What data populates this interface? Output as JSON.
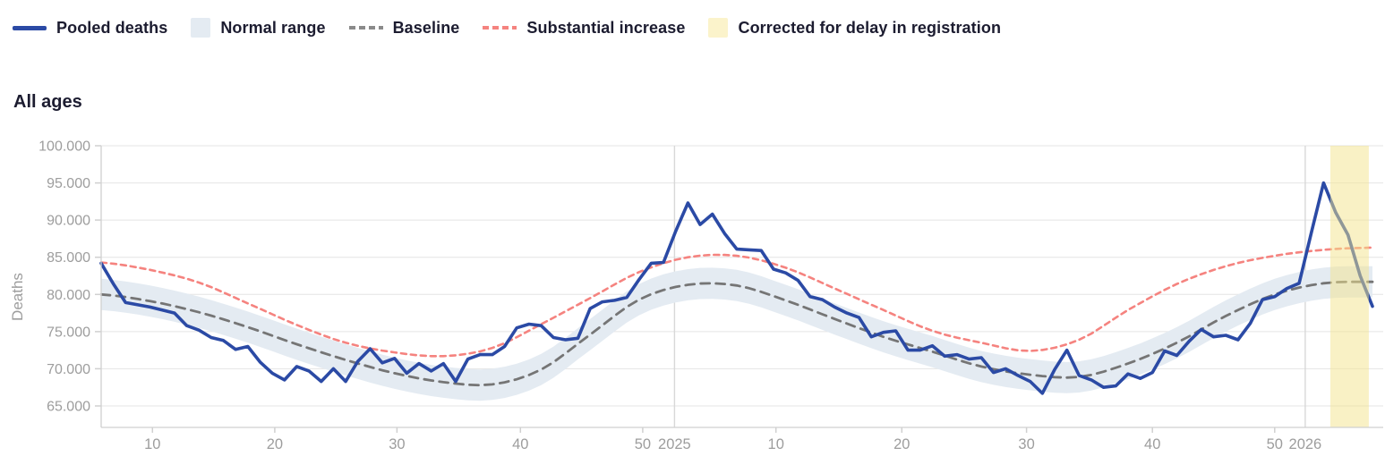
{
  "title": "All ages",
  "legend": {
    "items": [
      {
        "label": "Pooled deaths",
        "swatch": "line",
        "color": "#2b4aa5"
      },
      {
        "label": "Normal range",
        "swatch": "box",
        "color": "#e4ebf2"
      },
      {
        "label": "Baseline",
        "swatch": "dash",
        "color": "#8a8a8a"
      },
      {
        "label": "Substantial increase",
        "swatch": "dash",
        "color": "#f5837f"
      },
      {
        "label": "Corrected for delay in registration",
        "swatch": "box",
        "color": "#fbf3cb"
      }
    ]
  },
  "chart_data": {
    "type": "line",
    "title": "All ages",
    "ylabel": "Deaths",
    "ylim": [
      62100,
      100000
    ],
    "grid": "horizontal-only",
    "legend_position": "top-left",
    "y_ticks": [
      {
        "value": 100000,
        "label": "100.000"
      },
      {
        "value": 95000,
        "label": "95.000"
      },
      {
        "value": 90000,
        "label": "90.000"
      },
      {
        "value": 85000,
        "label": "85.000"
      },
      {
        "value": 80000,
        "label": "80.000"
      },
      {
        "value": 75000,
        "label": "75.000"
      },
      {
        "value": 70000,
        "label": "70.000"
      },
      {
        "value": 65000,
        "label": "65.000"
      }
    ],
    "x_axis": {
      "tick_unit": "week number",
      "points_total": 105,
      "week_ticks": [
        {
          "label": "10",
          "i": 4.2
        },
        {
          "label": "20",
          "i": 14.2
        },
        {
          "label": "30",
          "i": 24.2
        },
        {
          "label": "40",
          "i": 34.3
        },
        {
          "label": "50",
          "i": 44.3
        },
        {
          "label": "10",
          "i": 55.2
        },
        {
          "label": "20",
          "i": 65.5
        },
        {
          "label": "30",
          "i": 75.7
        },
        {
          "label": "40",
          "i": 86.0
        },
        {
          "label": "50",
          "i": 96.0
        }
      ],
      "year_dividers": [
        {
          "label": "2025",
          "i": 46.9
        },
        {
          "label": "2026",
          "i": 98.5
        }
      ]
    },
    "series": [
      {
        "name": "Pooled deaths",
        "type": "line",
        "weekly_values": [
          84200,
          81400,
          78900,
          78600,
          78300,
          77900,
          77500,
          75800,
          75200,
          74200,
          73800,
          72600,
          73000,
          70900,
          69400,
          68500,
          70300,
          69700,
          68300,
          70000,
          68300,
          71000,
          72700,
          70800,
          71400,
          69400,
          70700,
          69700,
          70700,
          68300,
          71300,
          71900,
          71900,
          73000,
          75500,
          76000,
          75800,
          74200,
          73900,
          74100,
          78100,
          79000,
          79200,
          79600,
          82000,
          84200,
          84300,
          88500,
          92300,
          89400,
          90800,
          88200,
          86100,
          86000,
          85900,
          83400,
          82900,
          81900,
          79700,
          79300,
          78300,
          77500,
          76900,
          74300,
          74900,
          75100,
          72500,
          72500,
          73100,
          71700,
          71900,
          71300,
          71500,
          69500,
          70000,
          69100,
          68300,
          66700,
          69900,
          72500,
          69100,
          68500,
          67500,
          67700,
          69300,
          68700,
          69500,
          72400,
          71800,
          73700,
          75300,
          74300,
          74500,
          73900,
          76100,
          79300,
          79700,
          80800,
          81500,
          88300,
          95000,
          91000,
          88000,
          82500,
          78400
        ]
      },
      {
        "name": "Baseline",
        "type": "dashed-line",
        "knot_step": 4,
        "knot_values": [
          80000,
          79100,
          77600,
          75600,
          73300,
          71200,
          69400,
          68200,
          67900,
          69900,
          74600,
          79300,
          81300,
          81200,
          79200,
          76700,
          74300,
          72300,
          70300,
          69200,
          68900,
          70700,
          73500,
          77100,
          80000,
          81500,
          81700
        ]
      },
      {
        "name": "Substantial increase",
        "type": "dashed-line",
        "knot_step": 4,
        "knot_values": [
          84300,
          83300,
          81600,
          78800,
          75900,
          73500,
          72200,
          71700,
          72800,
          76000,
          79500,
          83000,
          85000,
          85200,
          83600,
          80800,
          77900,
          75100,
          73500,
          72400,
          73900,
          77900,
          81400,
          83800,
          85200,
          86000,
          86300
        ]
      },
      {
        "name": "Normal range",
        "type": "band",
        "around": "Baseline",
        "halfwidth": 2100
      },
      {
        "name": "Corrected for delay in registration",
        "type": "region",
        "start_i": 100.55,
        "end_i": 103.7
      }
    ],
    "colors": {
      "pooled": "#2b4aa5",
      "baseline": "#757575",
      "substantial": "#f5837f",
      "normal_range": "#e4ebf2",
      "corrected_fill": "rgba(244,227,140,0.5)",
      "grid": "#e4e4e4",
      "axis": "#d0d0d0",
      "year_line": "#d8d8d8",
      "tick_text": "#9d9d9d"
    }
  }
}
